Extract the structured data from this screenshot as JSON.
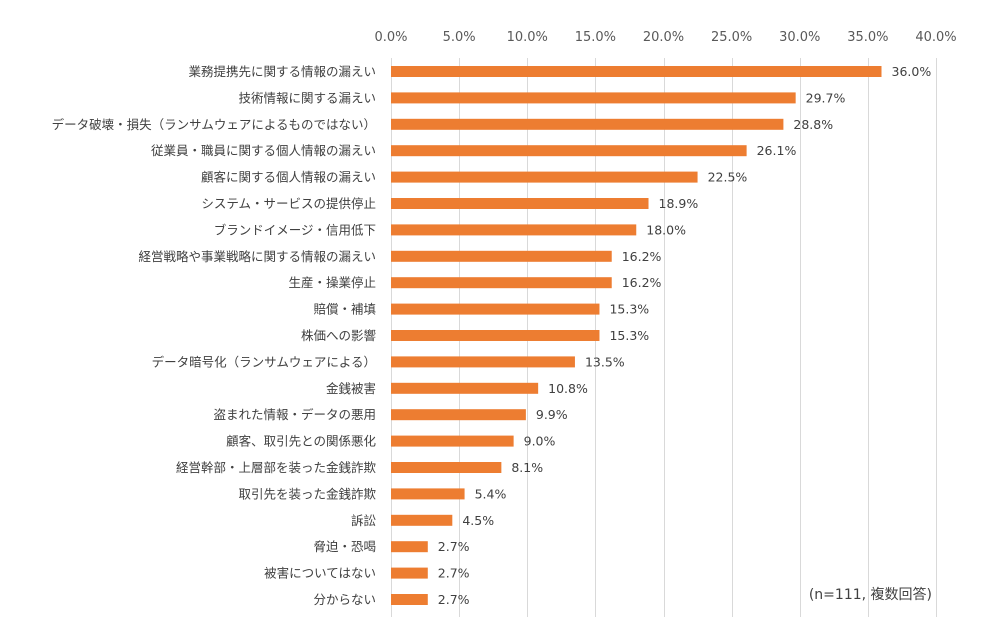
{
  "chart_data": {
    "type": "bar",
    "orientation": "horizontal",
    "title": "",
    "xlabel": "",
    "ylabel": "",
    "xlim": [
      0,
      40
    ],
    "x_ticks": [
      0,
      5,
      10,
      15,
      20,
      25,
      30,
      35,
      40
    ],
    "x_tick_labels": [
      "0.0%",
      "5.0%",
      "10.0%",
      "15.0%",
      "20.0%",
      "25.0%",
      "30.0%",
      "35.0%",
      "40.0%"
    ],
    "grid": true,
    "bar_color": "#ED7D31",
    "gridline_color": "#D9D9D9",
    "categories": [
      "業務提携先に関する情報の漏えい",
      "技術情報に関する漏えい",
      "データ破壊・損失（ランサムウェアによるものではない）",
      "従業員・職員に関する個人情報の漏えい",
      "顧客に関する個人情報の漏えい",
      "システム・サービスの提供停止",
      "ブランドイメージ・信用低下",
      "経営戦略や事業戦略に関する情報の漏えい",
      "生産・操業停止",
      "賠償・補填",
      "株価への影響",
      "データ暗号化（ランサムウェアによる）",
      "金銭被害",
      "盗まれた情報・データの悪用",
      "顧客、取引先との関係悪化",
      "経営幹部・上層部を装った金銭詐欺",
      "取引先を装った金銭詐欺",
      "訴訟",
      "脅迫・恐喝",
      "被害についてはない",
      "分からない"
    ],
    "values": [
      36.0,
      29.7,
      28.8,
      26.1,
      22.5,
      18.9,
      18.0,
      16.2,
      16.2,
      15.3,
      15.3,
      13.5,
      10.8,
      9.9,
      9.0,
      8.1,
      5.4,
      4.5,
      2.7,
      2.7,
      2.7
    ],
    "value_labels": [
      "36.0%",
      "29.7%",
      "28.8%",
      "26.1%",
      "22.5%",
      "18.9%",
      "18.0%",
      "16.2%",
      "16.2%",
      "15.3%",
      "15.3%",
      "13.5%",
      "10.8%",
      "9.9%",
      "9.0%",
      "8.1%",
      "5.4%",
      "4.5%",
      "2.7%",
      "2.7%",
      "2.7%"
    ],
    "annotation": "(n=111, 複数回答)"
  }
}
